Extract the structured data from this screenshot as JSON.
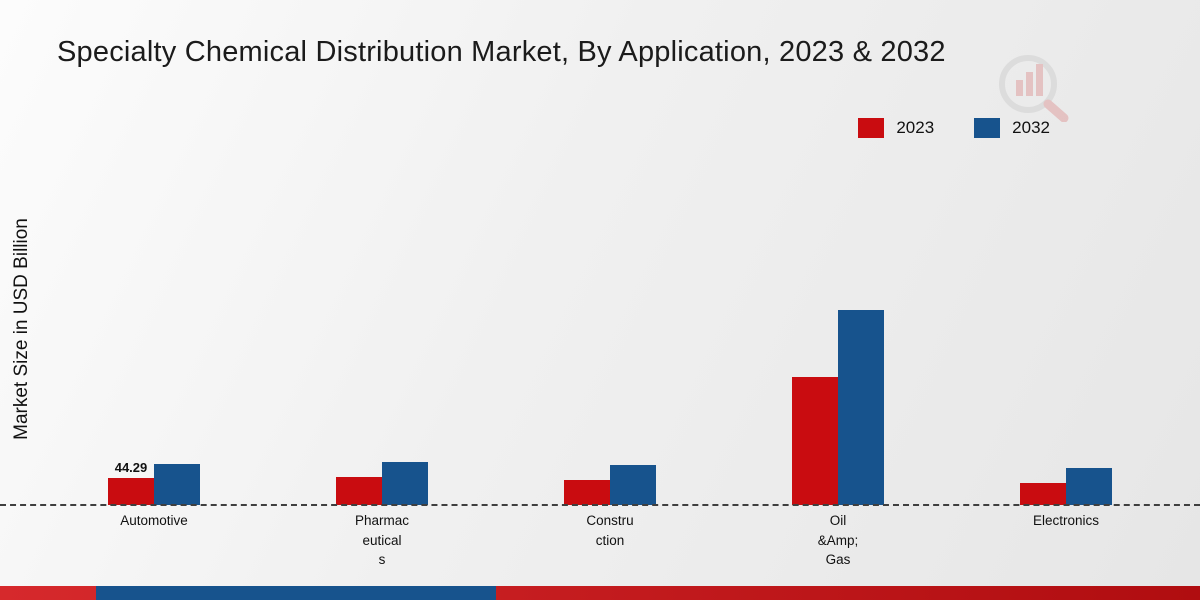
{
  "title": "Specialty Chemical Distribution Market, By Application, 2023 & 2032",
  "ylabel": "Market Size in USD Billion",
  "legend": [
    {
      "label": "2023",
      "color": "#c90c10"
    },
    {
      "label": "2032",
      "color": "#17538d"
    }
  ],
  "chart_data": {
    "type": "bar",
    "title": "Specialty Chemical Distribution Market, By Application, 2023 & 2032",
    "xlabel": "",
    "ylabel": "Market Size in USD Billion",
    "grid": false,
    "legend_position": "top-right",
    "categories": [
      "Automotive",
      "Pharmaceuticals",
      "Construction",
      "Oil &Amp; Gas",
      "Electronics"
    ],
    "categories_display": [
      [
        "Automotive"
      ],
      [
        "Pharmac",
        "eutical",
        "s"
      ],
      [
        "Constru",
        "ction"
      ],
      [
        "Oil",
        "&Amp;",
        "Gas"
      ],
      [
        "Electronics"
      ]
    ],
    "series": [
      {
        "name": "2023",
        "color": "#c90c10",
        "values": [
          44.29,
          46,
          41,
          210,
          36
        ]
      },
      {
        "name": "2032",
        "color": "#17538d",
        "values": [
          68,
          70,
          66,
          320,
          60
        ]
      }
    ],
    "ylim": [
      0,
      435
    ],
    "annotation": {
      "series": "2023",
      "index": 0,
      "text": "44.29"
    }
  },
  "footer": {
    "bar_color": "#b00d10",
    "accent_color": "#17538d"
  },
  "watermark": {
    "name": "mrfr-logo"
  }
}
